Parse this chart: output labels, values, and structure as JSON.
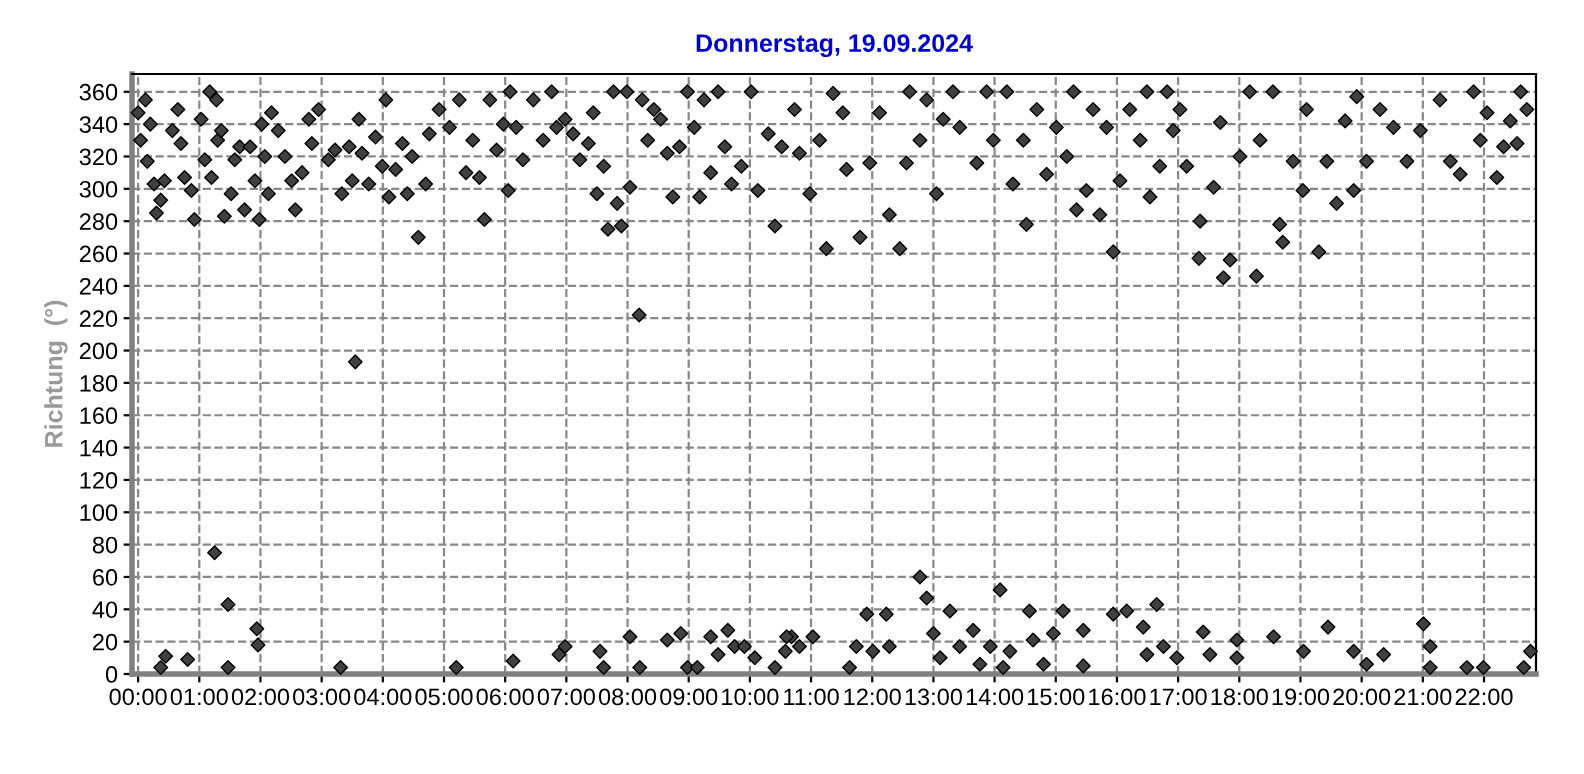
{
  "chart_data": {
    "type": "scatter",
    "title": "Donnerstag, 19.09.2024",
    "ylabel": "Richtung  (°)",
    "x": [
      0.0,
      0.04,
      0.12,
      0.15,
      0.2,
      0.26,
      0.3,
      0.37,
      0.43,
      0.56,
      0.65,
      0.7,
      0.76,
      0.87,
      0.92,
      1.03,
      1.09,
      1.17,
      1.2,
      1.28,
      1.3,
      1.36,
      1.41,
      1.52,
      1.58,
      1.66,
      1.74,
      1.83,
      1.91,
      1.98,
      2.02,
      2.07,
      2.13,
      2.18,
      2.29,
      2.4,
      2.51,
      2.57,
      2.68,
      2.79,
      2.84,
      2.95,
      3.11,
      3.22,
      3.33,
      3.45,
      3.5,
      3.61,
      3.66,
      3.77,
      3.88,
      3.99,
      4.05,
      4.1,
      4.21,
      4.32,
      4.4,
      4.48,
      4.58,
      4.7,
      4.76,
      4.92,
      5.09,
      5.25,
      5.36,
      5.47,
      5.58,
      5.66,
      5.75,
      5.86,
      5.97,
      6.05,
      6.08,
      6.18,
      6.29,
      6.46,
      6.62,
      6.76,
      6.84,
      6.98,
      7.11,
      7.22,
      7.36,
      7.44,
      7.5,
      7.61,
      7.68,
      7.77,
      7.83,
      7.9,
      7.99,
      8.04,
      8.19,
      8.24,
      8.33,
      8.43,
      8.54,
      8.65,
      8.74,
      8.85,
      8.98,
      9.09,
      9.18,
      9.25,
      9.36,
      9.48,
      9.59,
      9.7,
      9.86,
      10.02,
      10.13,
      10.3,
      10.41,
      10.52,
      10.73,
      10.81,
      10.98,
      11.14,
      11.25,
      11.36,
      11.52,
      11.58,
      11.8,
      11.96,
      12.12,
      12.28,
      12.45,
      12.56,
      12.61,
      12.78,
      12.89,
      13.05,
      13.16,
      13.32,
      13.43,
      13.71,
      13.87,
      13.98,
      14.2,
      14.3,
      14.47,
      14.52,
      14.69,
      14.85,
      15.01,
      15.18,
      15.29,
      15.34,
      15.5,
      15.61,
      15.72,
      15.83,
      15.94,
      16.05,
      16.21,
      16.38,
      16.49,
      16.54,
      16.7,
      16.82,
      16.92,
      17.03,
      17.14,
      17.34,
      17.36,
      17.58,
      17.69,
      17.74,
      17.85,
      18.01,
      18.17,
      18.28,
      18.34,
      18.55,
      18.66,
      18.71,
      18.88,
      19.04,
      19.1,
      19.3,
      19.43,
      19.59,
      19.73,
      19.87,
      19.92,
      20.08,
      20.3,
      20.52,
      20.74,
      20.96,
      21.28,
      21.45,
      21.61,
      21.83,
      21.94,
      22.05,
      22.21,
      22.32,
      22.43,
      22.54,
      22.6,
      22.7,
      0.37,
      0.45,
      0.81,
      1.25,
      1.47,
      1.47,
      1.94,
      1.96,
      3.31,
      3.55,
      5.2,
      6.13,
      6.88,
      6.98,
      7.55,
      7.61,
      8.04,
      8.2,
      8.65,
      8.87,
      8.98,
      9.14,
      9.36,
      9.48,
      9.64,
      9.75,
      9.91,
      10.08,
      10.41,
      10.58,
      10.68,
      10.6,
      10.81,
      11.03,
      11.63,
      11.74,
      11.91,
      12.01,
      12.23,
      12.28,
      12.78,
      12.89,
      13.0,
      13.11,
      13.27,
      13.43,
      13.65,
      13.76,
      13.93,
      14.09,
      14.14,
      14.25,
      14.57,
      14.63,
      14.8,
      14.96,
      15.12,
      15.45,
      15.45,
      15.94,
      16.16,
      16.43,
      16.49,
      16.65,
      16.76,
      16.98,
      17.41,
      17.52,
      17.96,
      17.96,
      18.56,
      19.05,
      19.45,
      19.87,
      20.08,
      20.36,
      21.01,
      21.12,
      21.12,
      21.72,
      21.99,
      22.65,
      22.76
    ],
    "values": [
      347,
      330,
      355,
      317,
      340,
      303,
      285,
      293,
      305,
      336,
      349,
      328,
      307,
      299,
      281,
      343,
      318,
      360,
      307,
      355,
      330,
      336,
      283,
      297,
      318,
      326,
      287,
      326,
      305,
      281,
      340,
      320,
      297,
      347,
      336,
      320,
      305,
      287,
      310,
      343,
      328,
      349,
      318,
      324,
      297,
      326,
      305,
      343,
      322,
      303,
      332,
      314,
      355,
      295,
      312,
      328,
      297,
      320,
      270,
      303,
      334,
      349,
      338,
      355,
      310,
      330,
      307,
      281,
      355,
      324,
      340,
      299,
      360,
      338,
      318,
      355,
      330,
      360,
      338,
      343,
      334,
      318,
      328,
      347,
      297,
      314,
      275,
      360,
      291,
      277,
      360,
      301,
      222,
      355,
      330,
      349,
      343,
      322,
      295,
      326,
      360,
      338,
      295,
      355,
      310,
      360,
      326,
      303,
      314,
      360,
      299,
      334,
      277,
      326,
      349,
      322,
      297,
      330,
      263,
      359,
      347,
      312,
      270,
      316,
      347,
      284,
      263,
      316,
      360,
      330,
      355,
      297,
      343,
      360,
      338,
      316,
      360,
      330,
      360,
      303,
      330,
      278,
      349,
      309,
      338,
      320,
      360,
      287,
      299,
      349,
      284,
      338,
      261,
      305,
      349,
      330,
      360,
      295,
      314,
      360,
      336,
      349,
      314,
      257,
      280,
      301,
      341,
      245,
      256,
      320,
      360,
      246,
      330,
      360,
      278,
      267,
      317,
      299,
      349,
      261,
      317,
      291,
      342,
      299,
      357,
      317,
      349,
      338,
      317,
      336,
      355,
      317,
      309,
      360,
      330,
      347,
      307,
      326,
      342,
      328,
      360,
      349,
      4,
      11,
      9,
      75,
      43,
      4,
      28,
      18,
      4,
      193,
      4,
      8,
      12,
      17,
      14,
      4,
      23,
      4,
      21,
      25,
      4,
      4,
      23,
      12,
      27,
      17,
      17,
      10,
      4,
      14,
      23,
      23,
      17,
      23,
      4,
      17,
      37,
      14,
      37,
      17,
      60,
      47,
      25,
      10,
      39,
      17,
      27,
      6,
      17,
      52,
      4,
      14,
      39,
      21,
      6,
      25,
      39,
      27,
      5,
      37,
      39,
      29,
      12,
      43,
      17,
      10,
      26,
      12,
      21,
      10,
      23,
      14,
      29,
      14,
      6,
      12,
      31,
      17,
      4,
      4,
      4,
      4,
      14
    ],
    "color": "#404040",
    "marker": "diamond",
    "grid": true,
    "line_style": "dashed",
    "xlim": [
      -0.1,
      22.85
    ],
    "ylim": [
      0,
      371
    ],
    "xticks": [
      {
        "value": 0,
        "label": "00:00"
      },
      {
        "value": 1,
        "label": "01:00"
      },
      {
        "value": 2,
        "label": "02:00"
      },
      {
        "value": 3,
        "label": "03:00"
      },
      {
        "value": 4,
        "label": "04:00"
      },
      {
        "value": 5,
        "label": "05:00"
      },
      {
        "value": 6,
        "label": "06:00"
      },
      {
        "value": 7,
        "label": "07:00"
      },
      {
        "value": 8,
        "label": "08:00"
      },
      {
        "value": 9,
        "label": "09:00"
      },
      {
        "value": 10,
        "label": "10:00"
      },
      {
        "value": 11,
        "label": "11:00"
      },
      {
        "value": 12,
        "label": "12:00"
      },
      {
        "value": 13,
        "label": "13:00"
      },
      {
        "value": 14,
        "label": "14:00"
      },
      {
        "value": 15,
        "label": "15:00"
      },
      {
        "value": 16,
        "label": "16:00"
      },
      {
        "value": 17,
        "label": "17:00"
      },
      {
        "value": 18,
        "label": "18:00"
      },
      {
        "value": 19,
        "label": "19:00"
      },
      {
        "value": 20,
        "label": "20:00"
      },
      {
        "value": 21,
        "label": "21:00"
      },
      {
        "value": 22,
        "label": "22:00"
      }
    ],
    "yticks": [
      0,
      20,
      40,
      60,
      80,
      100,
      120,
      140,
      160,
      180,
      200,
      220,
      240,
      260,
      280,
      300,
      320,
      340,
      360
    ]
  }
}
